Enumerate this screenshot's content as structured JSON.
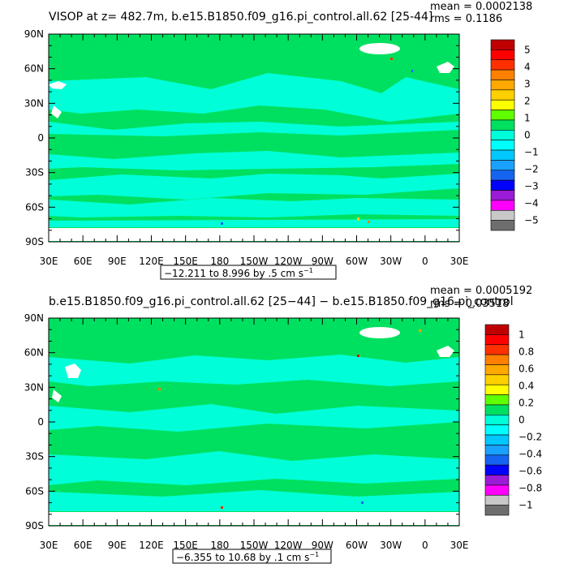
{
  "colors": {
    "ocean_green": "#00e060",
    "cyan": "#00ffd8",
    "land": "#ffffff",
    "frame": "#000000",
    "bottom_band": "#ffffff"
  },
  "palette": [
    "#6e6e6e",
    "#c8c8c8",
    "#ff00ff",
    "#9b1bd6",
    "#0000ff",
    "#1464f0",
    "#1aa0ff",
    "#00c8ff",
    "#00ffff",
    "#00ffd8",
    "#00e060",
    "#60ff00",
    "#ffff00",
    "#ffd000",
    "#ffa800",
    "#ff8000",
    "#ff3000",
    "#ff0000",
    "#c00000"
  ],
  "chart_data": [
    {
      "type": "heatmap",
      "title": "VISOP at z= 482.7m, b.e15.B1850.f09_g16.pi_control.all.62 [25-44]",
      "mean_label": "mean = 0.0002138",
      "rms_label": "rms = 0.1186",
      "range_label": "−12.211 to 8.996 by .5 cm s",
      "range_exponent": "−1",
      "x_ticks": [
        "30E",
        "60E",
        "90E",
        "120E",
        "150E",
        "180",
        "150W",
        "120W",
        "90W",
        "60W",
        "30W",
        "0",
        "30E"
      ],
      "y_ticks": [
        "90N",
        "60N",
        "30N",
        "0",
        "30S",
        "60S",
        "90S"
      ],
      "colorbar_labels": [
        "5",
        "4",
        "3",
        "2",
        "1",
        "0",
        "−1",
        "−2",
        "−3",
        "−4",
        "−5"
      ],
      "colorbar_range": [
        -5,
        5
      ]
    },
    {
      "type": "heatmap",
      "title": "b.e15.B1850.f09_g16.pi_control.all.62 [25−44] − b.e15.B1850.f09_g16.pi_control",
      "mean_label": "mean = 0.0005192",
      "rms_label": "rms = 0.03518",
      "range_label": "−6.355 to 10.68 by .1 cm s",
      "range_exponent": "−1",
      "x_ticks": [
        "30E",
        "60E",
        "90E",
        "120E",
        "150E",
        "180",
        "150W",
        "120W",
        "90W",
        "60W",
        "30W",
        "0",
        "30E"
      ],
      "y_ticks": [
        "90N",
        "60N",
        "30N",
        "0",
        "30S",
        "60S",
        "90S"
      ],
      "colorbar_labels": [
        "1",
        "0.8",
        "0.6",
        "0.4",
        "0.2",
        "0",
        "−0.2",
        "−0.4",
        "−0.6",
        "−0.8",
        "−1"
      ],
      "colorbar_range": [
        -1,
        1
      ]
    }
  ]
}
